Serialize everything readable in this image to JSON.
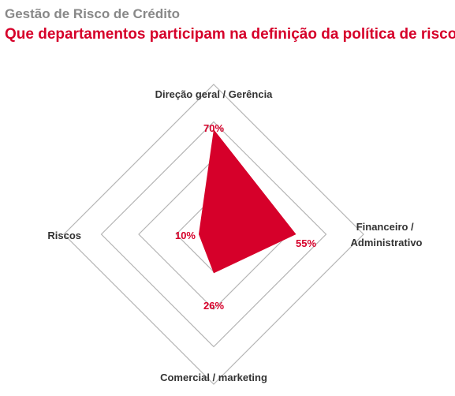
{
  "header": {
    "title": "Gestão de Risco de Crédito",
    "subtitle": "Que departamentos participam na definição da política de risco?"
  },
  "colors": {
    "accent": "#d6002a",
    "grid": "#b5b5b5",
    "title_gray": "#888888",
    "text": "#333333"
  },
  "chart_data": {
    "type": "radar",
    "title": "Gestão de Risco de Crédito",
    "subtitle": "Que departamentos participam na definição da política de risco?",
    "axes": [
      {
        "label": "Direção geral / Gerência",
        "value": 70,
        "value_label": "70%"
      },
      {
        "label": "Financeiro / Administrativo",
        "value": 55,
        "value_label": "55%"
      },
      {
        "label": "Comercial / marketing",
        "value": 26,
        "value_label": "26%"
      },
      {
        "label": "Riscos",
        "value": 10,
        "value_label": "10%"
      }
    ],
    "range": [
      0,
      100
    ],
    "grid_levels": 4,
    "legend": "none"
  }
}
